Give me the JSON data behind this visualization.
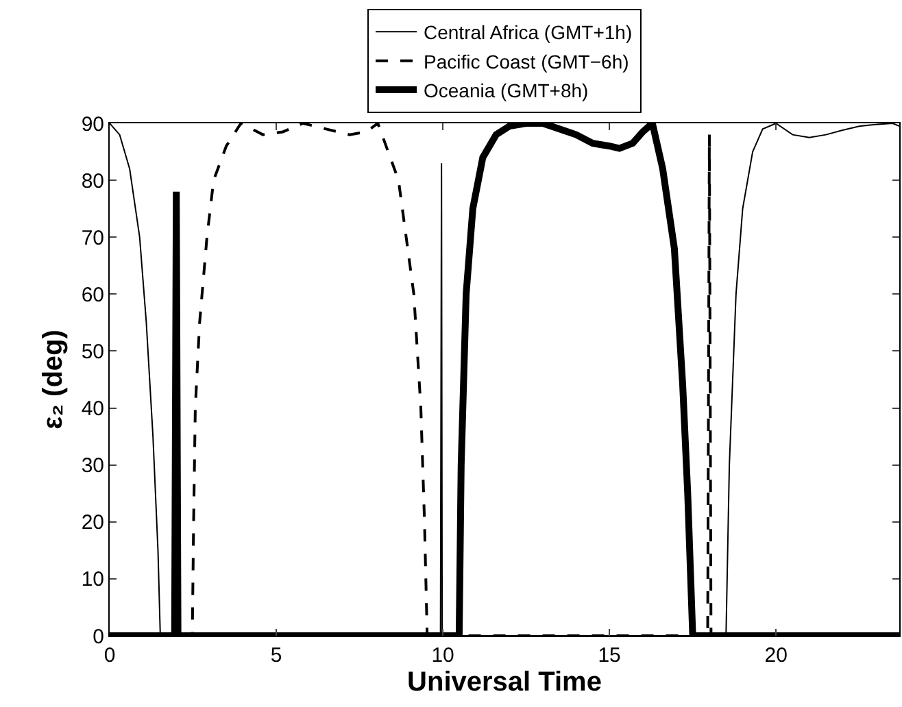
{
  "chart_data": {
    "type": "line",
    "xlabel": "Universal Time",
    "ylabel": "ε₂ (deg)",
    "xlim": [
      0,
      23.7
    ],
    "ylim": [
      0,
      90
    ],
    "xticks": [
      0,
      5,
      10,
      15,
      20
    ],
    "yticks": [
      0,
      10,
      20,
      30,
      40,
      50,
      60,
      70,
      80,
      90
    ],
    "grid": false,
    "legend": "top",
    "marker": "none",
    "series": [
      {
        "name": "Central Africa (GMT+1h)",
        "color": "#000000",
        "line_style": "solid",
        "x": [
          0,
          0.3,
          0.6,
          0.9,
          1.1,
          1.3,
          1.45,
          1.52,
          9.93,
          9.96,
          9.98,
          18.5,
          18.6,
          18.8,
          19.0,
          19.3,
          19.6,
          20,
          20.5,
          21,
          21.5,
          22,
          22.5,
          23,
          23.5,
          23.7
        ],
        "values": [
          90,
          88,
          82,
          70,
          55,
          35,
          15,
          0,
          0,
          83,
          0,
          0,
          30,
          60,
          75,
          85,
          89,
          90,
          88,
          87.5,
          88,
          88.8,
          89.5,
          89.8,
          90,
          89.5
        ]
      },
      {
        "name": "Pacific Coast (GMT−6h)",
        "color": "#000000",
        "line_style": "dashed",
        "x": [
          0,
          2.48,
          2.52,
          2.57,
          2.7,
          2.92,
          3.12,
          3.5,
          3.94,
          4.6,
          5.2,
          5.8,
          6.5,
          7.2,
          7.7,
          8.05,
          8.67,
          9.13,
          9.34,
          9.45,
          9.53,
          17.95,
          18.0,
          18.05,
          23.7
        ],
        "values": [
          0,
          0,
          20,
          40,
          55,
          70,
          80,
          86,
          90,
          88,
          88.5,
          90,
          89,
          88,
          88.5,
          90,
          80,
          60,
          40,
          20,
          0,
          0,
          88,
          0,
          0
        ]
      },
      {
        "name": "Oceania (GMT+8h)",
        "color": "#000000",
        "line_style": "solid",
        "x": [
          0,
          1.95,
          2.0,
          2.05,
          10.49,
          10.55,
          10.7,
          10.9,
          11.2,
          11.6,
          12,
          12.5,
          13,
          13.5,
          14,
          14.5,
          15,
          15.3,
          15.7,
          16,
          16.29,
          16.6,
          16.95,
          17.2,
          17.35,
          17.5,
          23.7
        ],
        "values": [
          0,
          0,
          78,
          0,
          0,
          30,
          60,
          75,
          84,
          88,
          89.5,
          90,
          90,
          89,
          88,
          86.5,
          86,
          85.6,
          86.5,
          88.5,
          90,
          82,
          68,
          44,
          25,
          0,
          0
        ]
      }
    ]
  }
}
